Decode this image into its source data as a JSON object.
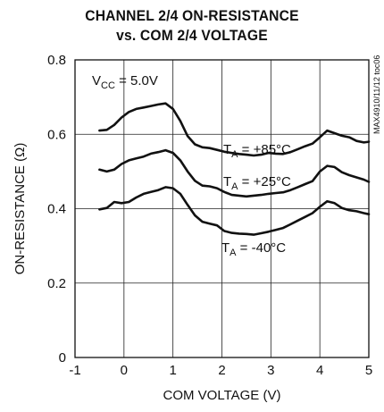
{
  "chart_data": {
    "type": "line",
    "title_line1": "CHANNEL 2/4 ON-RESISTANCE",
    "title_line2": "vs. COM 2/4 VOLTAGE",
    "xlabel": "COM VOLTAGE (V)",
    "ylabel": "ON-RESISTANCE (Ω)",
    "xlim": [
      -1,
      5
    ],
    "ylim": [
      0,
      0.8
    ],
    "xticks": [
      "-1",
      "0",
      "1",
      "2",
      "3",
      "4",
      "5"
    ],
    "yticks": [
      "0",
      "0.2",
      "0.4",
      "0.6",
      "0.8"
    ],
    "grid": true,
    "annotation_vcc": {
      "main": "V",
      "sub": "CC",
      "rest": " = 5.0V"
    },
    "figure_id": "MAX4910/11/12 toc06",
    "series": [
      {
        "name": "TA = +85°C",
        "label": {
          "main": "T",
          "sub": "A",
          "rest": " = +85°C"
        },
        "x": [
          -0.5,
          -0.35,
          -0.2,
          -0.05,
          0.1,
          0.25,
          0.4,
          0.55,
          0.7,
          0.85,
          1.0,
          1.15,
          1.3,
          1.45,
          1.6,
          1.75,
          1.9,
          2.05,
          2.2,
          2.35,
          2.5,
          2.65,
          2.8,
          2.95,
          3.1,
          3.25,
          3.4,
          3.55,
          3.7,
          3.85,
          4.0,
          4.15,
          4.3,
          4.45,
          4.6,
          4.75,
          4.9,
          5.0
        ],
        "y": [
          0.61,
          0.612,
          0.625,
          0.645,
          0.66,
          0.668,
          0.672,
          0.676,
          0.68,
          0.683,
          0.668,
          0.636,
          0.595,
          0.573,
          0.565,
          0.563,
          0.558,
          0.553,
          0.55,
          0.547,
          0.545,
          0.543,
          0.545,
          0.55,
          0.548,
          0.547,
          0.552,
          0.56,
          0.568,
          0.575,
          0.592,
          0.61,
          0.603,
          0.596,
          0.592,
          0.582,
          0.578,
          0.58
        ]
      },
      {
        "name": "TA = +25°C",
        "label": {
          "main": "T",
          "sub": "A",
          "rest": " = +25°C"
        },
        "x": [
          -0.5,
          -0.35,
          -0.2,
          -0.05,
          0.1,
          0.25,
          0.4,
          0.55,
          0.7,
          0.85,
          1.0,
          1.15,
          1.3,
          1.45,
          1.6,
          1.75,
          1.9,
          2.05,
          2.2,
          2.35,
          2.5,
          2.65,
          2.8,
          2.95,
          3.1,
          3.25,
          3.4,
          3.55,
          3.7,
          3.85,
          4.0,
          4.15,
          4.3,
          4.45,
          4.6,
          4.75,
          4.9,
          5.0
        ],
        "y": [
          0.505,
          0.5,
          0.505,
          0.52,
          0.53,
          0.535,
          0.54,
          0.548,
          0.552,
          0.557,
          0.55,
          0.53,
          0.5,
          0.475,
          0.462,
          0.46,
          0.455,
          0.445,
          0.437,
          0.435,
          0.433,
          0.435,
          0.437,
          0.44,
          0.442,
          0.444,
          0.45,
          0.458,
          0.466,
          0.474,
          0.5,
          0.515,
          0.512,
          0.498,
          0.49,
          0.484,
          0.478,
          0.472
        ]
      },
      {
        "name": "TA = -40°C",
        "label": {
          "main": "T",
          "sub": "A",
          "rest": " = -40°C"
        },
        "x": [
          -0.5,
          -0.35,
          -0.2,
          -0.05,
          0.1,
          0.25,
          0.4,
          0.55,
          0.7,
          0.85,
          1.0,
          1.15,
          1.3,
          1.45,
          1.6,
          1.75,
          1.9,
          2.05,
          2.2,
          2.35,
          2.5,
          2.65,
          2.8,
          2.95,
          3.1,
          3.25,
          3.4,
          3.55,
          3.7,
          3.85,
          4.0,
          4.15,
          4.3,
          4.45,
          4.6,
          4.75,
          4.9,
          5.0
        ],
        "y": [
          0.398,
          0.402,
          0.418,
          0.415,
          0.418,
          0.43,
          0.44,
          0.445,
          0.45,
          0.458,
          0.455,
          0.44,
          0.41,
          0.382,
          0.365,
          0.36,
          0.355,
          0.34,
          0.335,
          0.333,
          0.332,
          0.33,
          0.334,
          0.338,
          0.343,
          0.348,
          0.358,
          0.368,
          0.378,
          0.388,
          0.405,
          0.42,
          0.415,
          0.402,
          0.396,
          0.393,
          0.388,
          0.385
        ]
      }
    ]
  }
}
